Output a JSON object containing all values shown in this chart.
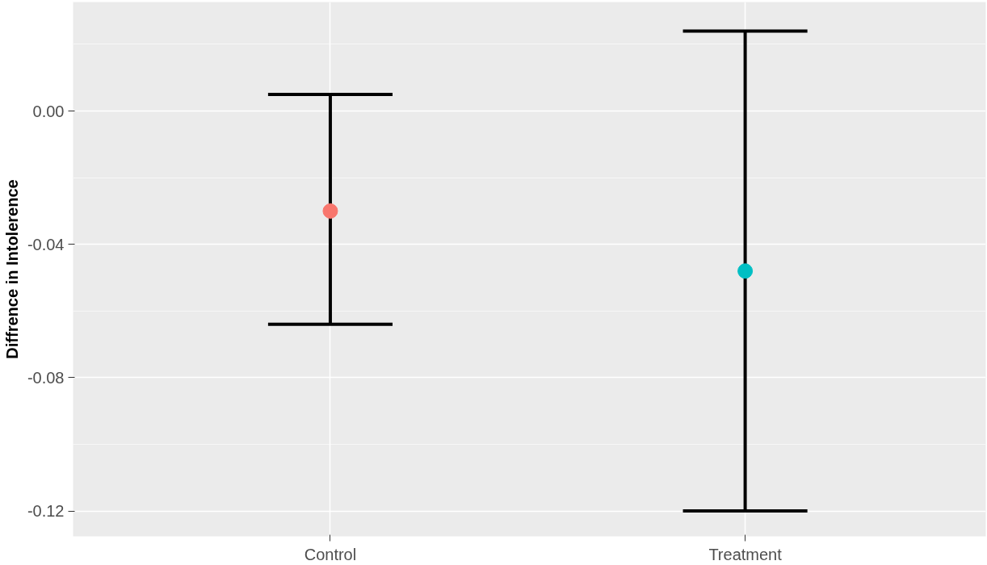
{
  "chart_data": {
    "type": "scatter",
    "ylabel": "Diffrence in Intolerence",
    "categories": [
      "Control",
      "Treatment"
    ],
    "values": [
      -0.03,
      -0.048
    ],
    "colors": [
      "#f8766d",
      "#00bfc4"
    ],
    "errors": [
      [
        -0.064,
        0.005
      ],
      [
        -0.12,
        0.024
      ]
    ],
    "ylim": [
      -0.1276,
      0.0327
    ],
    "yticks": [
      {
        "value": -0.12,
        "label": "-0.12"
      },
      {
        "value": -0.08,
        "label": "-0.08"
      },
      {
        "value": -0.04,
        "label": "-0.04"
      },
      {
        "value": 0,
        "label": "0.00"
      }
    ],
    "grid": true,
    "marker": "circle"
  }
}
